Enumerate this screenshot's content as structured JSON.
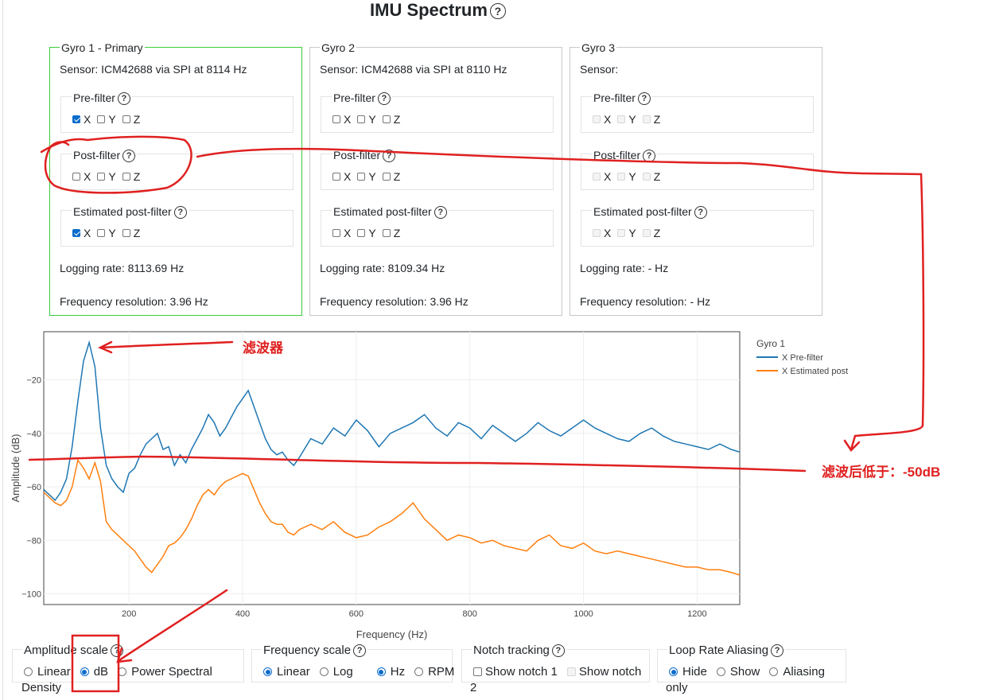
{
  "title": "IMU Spectrum",
  "help_glyph": "?",
  "gyros": [
    {
      "name": "Gyro 1 - Primary",
      "sensor": "Sensor: ICM42688 via SPI at 8114 Hz",
      "groups": [
        {
          "label": "Pre-filter",
          "x": true,
          "y": false,
          "z": false,
          "disabled": false
        },
        {
          "label": "Post-filter",
          "x": false,
          "y": false,
          "z": false,
          "disabled": false
        },
        {
          "label": "Estimated post-filter",
          "x": true,
          "y": false,
          "z": false,
          "disabled": false
        }
      ],
      "logging_rate": "Logging rate: 8113.69 Hz",
      "freq_resolution": "Frequency resolution: 3.96 Hz"
    },
    {
      "name": "Gyro 2",
      "sensor": "Sensor: ICM42688 via SPI at 8110 Hz",
      "groups": [
        {
          "label": "Pre-filter",
          "x": false,
          "y": false,
          "z": false,
          "disabled": false
        },
        {
          "label": "Post-filter",
          "x": false,
          "y": false,
          "z": false,
          "disabled": false
        },
        {
          "label": "Estimated post-filter",
          "x": false,
          "y": false,
          "z": false,
          "disabled": false
        }
      ],
      "logging_rate": "Logging rate: 8109.34 Hz",
      "freq_resolution": "Frequency resolution: 3.96 Hz"
    },
    {
      "name": "Gyro 3",
      "sensor": "Sensor:",
      "groups": [
        {
          "label": "Pre-filter",
          "x": false,
          "y": false,
          "z": false,
          "disabled": true
        },
        {
          "label": "Post-filter",
          "x": false,
          "y": false,
          "z": false,
          "disabled": true
        },
        {
          "label": "Estimated post-filter",
          "x": false,
          "y": false,
          "z": false,
          "disabled": true
        }
      ],
      "logging_rate": "Logging rate: - Hz",
      "freq_resolution": "Frequency resolution: - Hz"
    }
  ],
  "axis_labels": {
    "x": "X",
    "y": "Y",
    "z": "Z"
  },
  "chart_data": {
    "type": "line",
    "xlabel": "Frequency (Hz)",
    "ylabel": "Amplitude (dB)",
    "xlim": [
      50,
      1275
    ],
    "ylim": [
      -104,
      -2
    ],
    "x_ticks": [
      200,
      400,
      600,
      800,
      1000,
      1200
    ],
    "y_ticks": [
      -20,
      -40,
      -60,
      -80,
      -100
    ],
    "y_tick_labels": [
      "−20",
      "−40",
      "−60",
      "−80",
      "−100"
    ],
    "grid": true,
    "legend_title": "Gyro 1",
    "legend_position": "right",
    "colors": {
      "pre": "#1f77b4",
      "est": "#ff7f0e"
    },
    "series": [
      {
        "name": "X Pre-filter",
        "x": [
          50,
          60,
          70,
          80,
          90,
          100,
          110,
          120,
          130,
          140,
          150,
          160,
          170,
          180,
          190,
          200,
          210,
          220,
          230,
          240,
          250,
          260,
          270,
          280,
          290,
          300,
          310,
          320,
          330,
          340,
          350,
          360,
          370,
          380,
          390,
          400,
          410,
          420,
          430,
          440,
          450,
          460,
          470,
          480,
          490,
          500,
          520,
          540,
          560,
          580,
          600,
          620,
          640,
          660,
          680,
          700,
          720,
          740,
          760,
          780,
          800,
          820,
          840,
          860,
          880,
          900,
          920,
          940,
          960,
          980,
          1000,
          1020,
          1040,
          1060,
          1080,
          1100,
          1120,
          1140,
          1160,
          1180,
          1200,
          1220,
          1240,
          1260,
          1275
        ],
        "values": [
          -61,
          -63,
          -65,
          -62,
          -57,
          -45,
          -28,
          -13,
          -6,
          -15,
          -38,
          -52,
          -57,
          -60,
          -62,
          -55,
          -53,
          -48,
          -44,
          -42,
          -40,
          -46,
          -45,
          -52,
          -48,
          -51,
          -46,
          -42,
          -38,
          -33,
          -36,
          -41,
          -38,
          -34,
          -30,
          -27,
          -24,
          -30,
          -36,
          -42,
          -46,
          -48,
          -47,
          -50,
          -52,
          -49,
          -42,
          -44,
          -38,
          -41,
          -35,
          -39,
          -45,
          -40,
          -38,
          -36,
          -33,
          -38,
          -41,
          -36,
          -38,
          -42,
          -37,
          -40,
          -43,
          -40,
          -36,
          -39,
          -41,
          -38,
          -35,
          -38,
          -40,
          -42,
          -43,
          -40,
          -38,
          -41,
          -43,
          -44,
          -45,
          -46,
          -44,
          -46,
          -47
        ]
      },
      {
        "name": "X Estimated post",
        "x": [
          50,
          60,
          70,
          80,
          90,
          100,
          110,
          120,
          130,
          140,
          150,
          160,
          170,
          180,
          190,
          200,
          210,
          220,
          230,
          240,
          250,
          260,
          270,
          280,
          290,
          300,
          310,
          320,
          330,
          340,
          350,
          360,
          370,
          380,
          390,
          400,
          410,
          420,
          430,
          440,
          450,
          460,
          470,
          480,
          490,
          500,
          520,
          540,
          560,
          580,
          600,
          620,
          640,
          660,
          680,
          700,
          720,
          740,
          760,
          780,
          800,
          820,
          840,
          860,
          880,
          900,
          920,
          940,
          960,
          980,
          1000,
          1020,
          1040,
          1060,
          1080,
          1100,
          1120,
          1140,
          1160,
          1180,
          1200,
          1220,
          1240,
          1260,
          1275
        ],
        "values": [
          -62,
          -64,
          -66,
          -67,
          -65,
          -60,
          -50,
          -53,
          -57,
          -51,
          -58,
          -73,
          -76,
          -78,
          -80,
          -82,
          -84,
          -87,
          -90,
          -92,
          -89,
          -86,
          -82,
          -81,
          -79,
          -76,
          -72,
          -67,
          -63,
          -61,
          -63,
          -60,
          -58,
          -57,
          -56,
          -55,
          -56,
          -61,
          -66,
          -70,
          -73,
          -74,
          -74,
          -77,
          -78,
          -76,
          -74,
          -76,
          -73,
          -77,
          -79,
          -78,
          -75,
          -73,
          -70,
          -66,
          -72,
          -76,
          -80,
          -78,
          -79,
          -81,
          -80,
          -82,
          -83,
          -84,
          -80,
          -78,
          -82,
          -83,
          -81,
          -84,
          -85,
          -84,
          -85,
          -86,
          -87,
          -88,
          -89,
          -90,
          -90,
          -91,
          -91,
          -92,
          -93
        ]
      }
    ]
  },
  "controls": {
    "amplitude": {
      "title": "Amplitude scale",
      "options": [
        "Linear",
        "dB",
        "Power Spectral"
      ],
      "selected": 1,
      "wrap": "Density"
    },
    "frequency": {
      "title": "Frequency scale",
      "options": [
        "Linear",
        "Log"
      ],
      "selected": 0,
      "unit_options": [
        "Hz",
        "RPM"
      ],
      "unit_selected": 0
    },
    "notch": {
      "title": "Notch tracking",
      "options": [
        "Show notch 1",
        "Show notch"
      ],
      "wrap": "2"
    },
    "aliasing": {
      "title": "Loop Rate Aliasing",
      "options": [
        "Hide",
        "Show",
        "Aliasing"
      ],
      "selected": 0,
      "wrap": "only"
    }
  },
  "annotations": {
    "filter_label": "滤波器",
    "after_filter_label": "滤波后低于：-50dB",
    "color": "#e02020"
  }
}
